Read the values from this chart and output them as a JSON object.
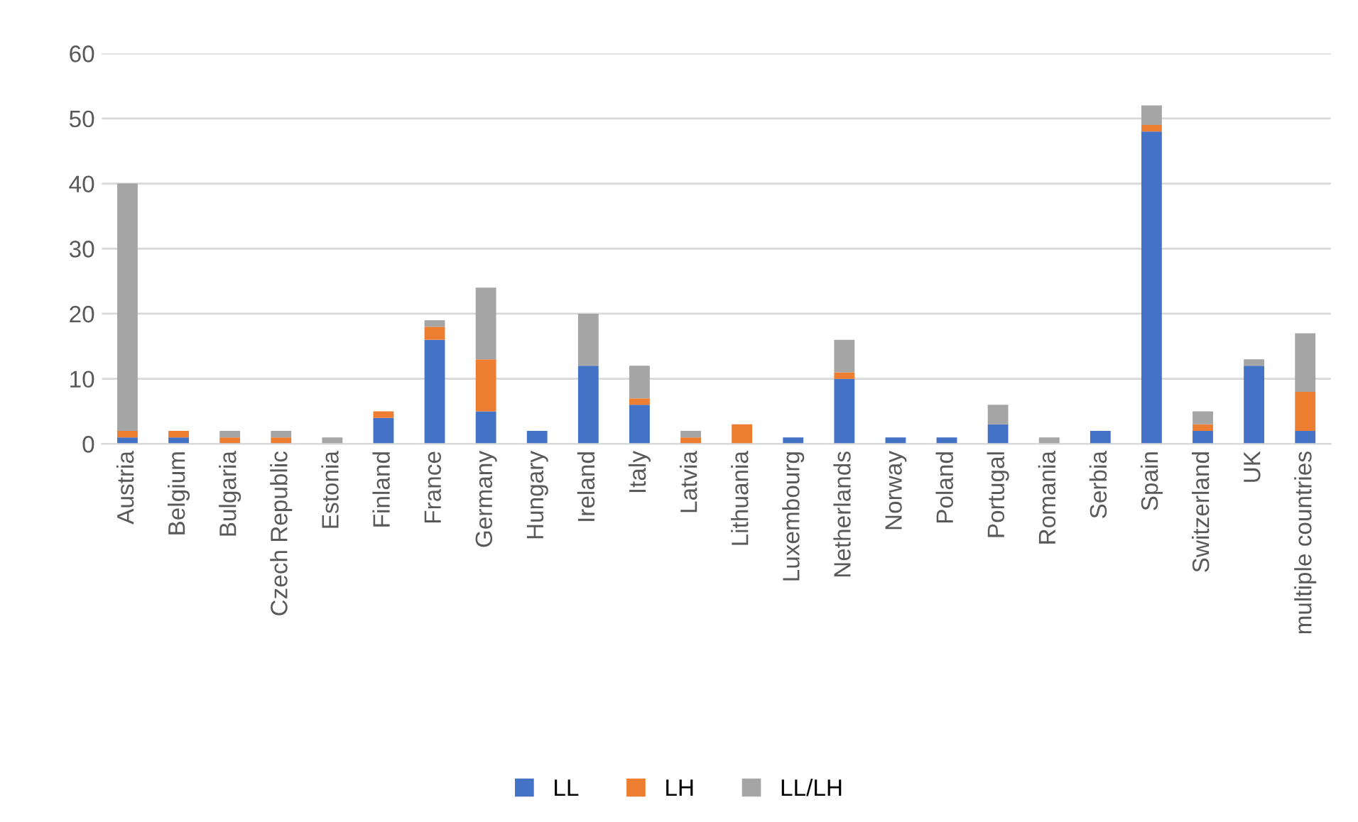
{
  "chart_data": {
    "type": "bar",
    "stacked": true,
    "categories": [
      "Austria",
      "Belgium",
      "Bulgaria",
      "Czech Republic",
      "Estonia",
      "Finland",
      "France",
      "Germany",
      "Hungary",
      "Ireland",
      "Italy",
      "Latvia",
      "Lithuania",
      "Luxembourg",
      "Netherlands",
      "Norway",
      "Poland",
      "Portugal",
      "Romania",
      "Serbia",
      "Spain",
      "Switzerland",
      "UK",
      "multiple countries"
    ],
    "series": [
      {
        "name": "LL",
        "color": "#4472c4",
        "values": [
          1,
          1,
          0,
          0,
          0,
          4,
          16,
          5,
          2,
          12,
          6,
          0,
          0,
          1,
          10,
          1,
          1,
          3,
          0,
          2,
          48,
          2,
          12,
          2
        ]
      },
      {
        "name": "LH",
        "color": "#ed7d31",
        "values": [
          1,
          1,
          1,
          1,
          0,
          1,
          2,
          8,
          0,
          0,
          1,
          1,
          3,
          0,
          1,
          0,
          0,
          0,
          0,
          0,
          1,
          1,
          0,
          6
        ]
      },
      {
        "name": "LL/LH",
        "color": "#a5a5a5",
        "values": [
          38,
          0,
          1,
          1,
          1,
          0,
          1,
          11,
          0,
          8,
          5,
          1,
          0,
          0,
          5,
          0,
          0,
          3,
          1,
          0,
          3,
          2,
          1,
          9
        ]
      }
    ],
    "ylim": [
      0,
      60
    ],
    "yticks": [
      0,
      10,
      20,
      30,
      40,
      50,
      60
    ],
    "grid": "y",
    "legend": "bottom"
  }
}
